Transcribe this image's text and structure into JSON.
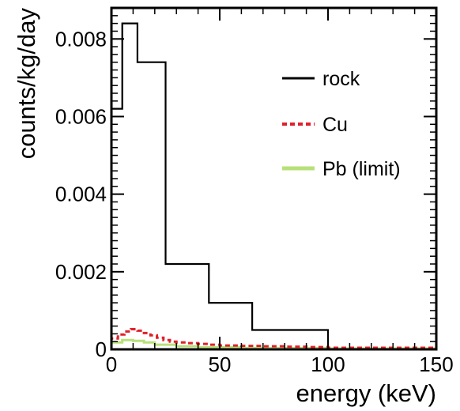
{
  "chart_data": {
    "type": "line",
    "style": "step-histogram",
    "xlabel": "energy (keV)",
    "ylabel": "counts/kg/day",
    "xlim": [
      0,
      150
    ],
    "ylim": [
      0,
      0.0088
    ],
    "x_ticks": [
      0,
      50,
      100,
      150
    ],
    "x_tick_labels": [
      "0",
      "50",
      "100",
      "150"
    ],
    "y_ticks": [
      0,
      0.002,
      0.004,
      0.006,
      0.008
    ],
    "y_tick_labels": [
      "0",
      "0.002",
      "0.004",
      "0.006",
      "0.008"
    ],
    "grid": false,
    "legend_position": "top-right",
    "series": [
      {
        "name": "rock",
        "color": "#000000",
        "line_style": "solid",
        "bin_edges": [
          0,
          5,
          12,
          25,
          45,
          65,
          100,
          150
        ],
        "values": [
          0.0062,
          0.0084,
          0.0074,
          0.0022,
          0.0012,
          0.0005,
          0.0
        ]
      },
      {
        "name": "Cu",
        "color": "#e0202a",
        "line_style": "dashed",
        "bin_edges": [
          0,
          3,
          6,
          9,
          12,
          15,
          18,
          21,
          24,
          27,
          30,
          35,
          40,
          45,
          50,
          60,
          70,
          80,
          90,
          100,
          150
        ],
        "values": [
          0.00028,
          0.00038,
          0.00046,
          0.00052,
          0.00048,
          0.00042,
          0.00036,
          0.0003,
          0.00024,
          0.0002,
          0.00018,
          0.00016,
          0.00014,
          0.00012,
          0.0001,
          9e-05,
          8e-05,
          7e-05,
          6e-05,
          4e-05
        ]
      },
      {
        "name": "Pb (limit)",
        "color": "#b8e07a",
        "line_style": "solid",
        "bin_edges": [
          0,
          5,
          10,
          15,
          20,
          30,
          40,
          60,
          100,
          150
        ],
        "values": [
          0.00018,
          0.00024,
          0.00022,
          0.00018,
          0.00012,
          8e-05,
          5e-05,
          3e-05,
          2e-05
        ]
      }
    ]
  }
}
